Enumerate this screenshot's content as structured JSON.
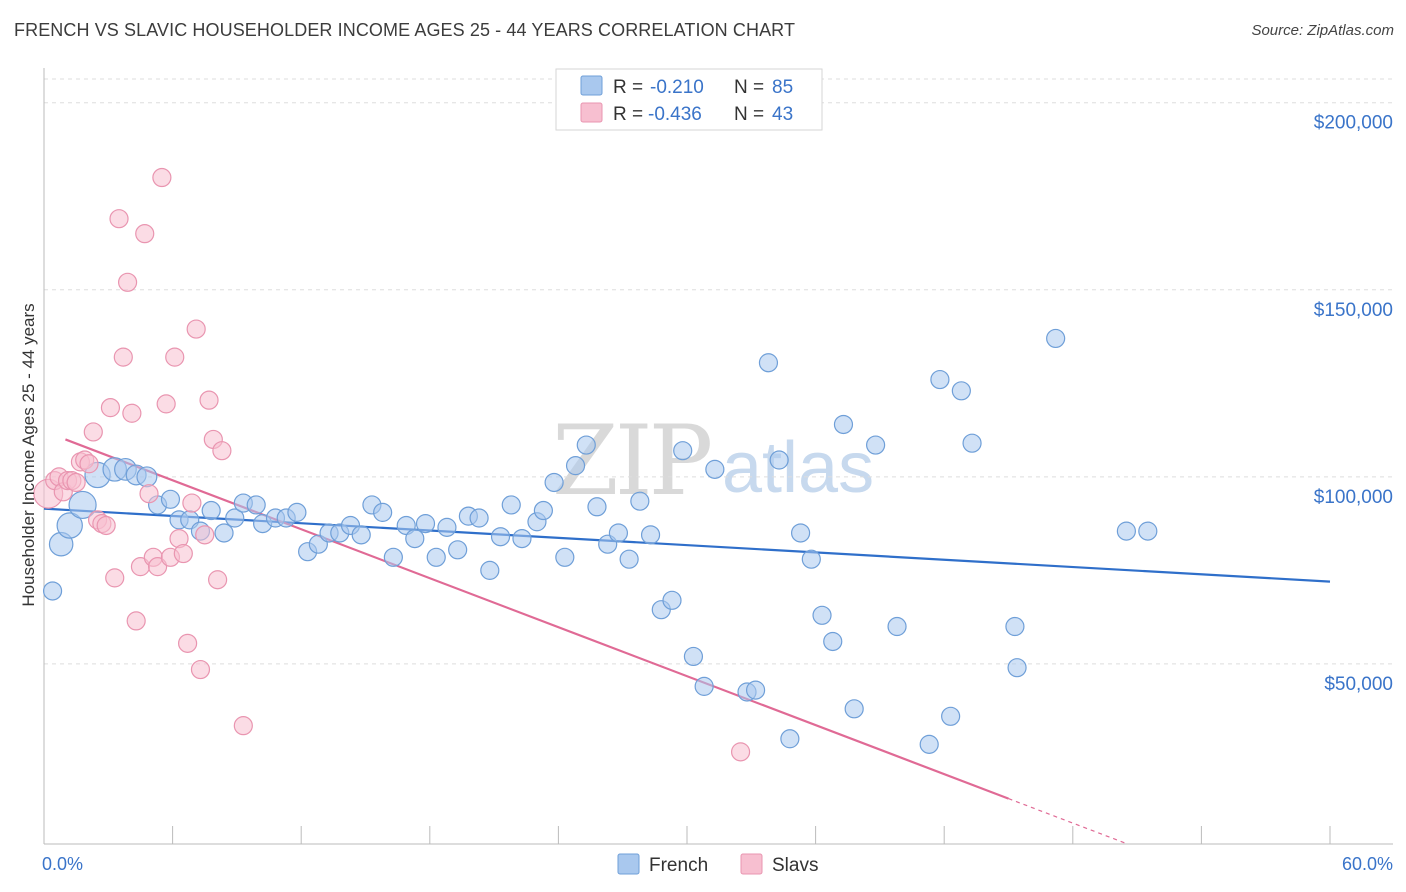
{
  "title": "FRENCH VS SLAVIC HOUSEHOLDER INCOME AGES 25 - 44 YEARS CORRELATION CHART",
  "source": "Source: ZipAtlas.com",
  "watermark": {
    "zip": "ZIP",
    "atlas": "atlas"
  },
  "legend": {
    "french": {
      "r_label": "R =",
      "r_value": "-0.210",
      "n_label": "N =",
      "n_value": "85"
    },
    "slavs": {
      "r_label": "R =",
      "r_value": "-0.436",
      "n_label": "N =",
      "n_value": "43"
    }
  },
  "bottom_legend": {
    "french": "French",
    "slavs": "Slavs"
  },
  "colors": {
    "french_fill": "#a9c8ee",
    "french_stroke": "#6f9fd8",
    "french_line": "#2f6fca",
    "slavs_fill": "#f7bfd0",
    "slavs_stroke": "#e995b0",
    "slavs_line": "#e06a95",
    "axis_text": "#3a74c9",
    "grid": "#dddddd"
  },
  "chart_data": {
    "type": "scatter",
    "title": "FRENCH VS SLAVIC HOUSEHOLDER INCOME AGES 25 - 44 YEARS CORRELATION CHART",
    "xlabel": "",
    "ylabel": "Householder Income Ages 25 - 44 years",
    "xlim": [
      0,
      60
    ],
    "ylim": [
      0,
      205000
    ],
    "x_tick_labels": {
      "left": "0.0%",
      "right": "60.0%"
    },
    "y_ticks": [
      {
        "value": 50000,
        "label": "$50,000"
      },
      {
        "value": 100000,
        "label": "$100,000"
      },
      {
        "value": 150000,
        "label": "$150,000"
      },
      {
        "value": 200000,
        "label": "$200,000"
      }
    ],
    "series": [
      {
        "name": "French",
        "trend": {
          "x0": 0,
          "y0": 91500,
          "x1": 60,
          "y1": 72000
        },
        "points": [
          [
            0.4,
            69500,
            1
          ],
          [
            0.8,
            82000,
            1.3
          ],
          [
            1.2,
            87000,
            1.4
          ],
          [
            1.8,
            92500,
            1.5
          ],
          [
            2.5,
            100500,
            1.4
          ],
          [
            3.3,
            102000,
            1.3
          ],
          [
            3.8,
            102000,
            1.2
          ],
          [
            4.3,
            100500,
            1.1
          ],
          [
            4.8,
            100000,
            1.1
          ],
          [
            5.3,
            92500,
            1
          ],
          [
            5.9,
            94000,
            1
          ],
          [
            6.3,
            88500,
            1
          ],
          [
            6.8,
            88500,
            1
          ],
          [
            7.3,
            85500,
            1
          ],
          [
            7.8,
            91000,
            1
          ],
          [
            8.4,
            85000,
            1
          ],
          [
            8.9,
            89000,
            1
          ],
          [
            9.3,
            93000,
            1
          ],
          [
            9.9,
            92500,
            1
          ],
          [
            10.2,
            87500,
            1
          ],
          [
            10.8,
            89000,
            1
          ],
          [
            11.3,
            89000,
            1
          ],
          [
            11.8,
            90500,
            1
          ],
          [
            12.3,
            80000,
            1
          ],
          [
            12.8,
            82000,
            1
          ],
          [
            13.3,
            85000,
            1
          ],
          [
            13.8,
            85000,
            1
          ],
          [
            14.3,
            87000,
            1
          ],
          [
            14.8,
            84500,
            1
          ],
          [
            15.3,
            92500,
            1
          ],
          [
            15.8,
            90500,
            1
          ],
          [
            16.3,
            78500,
            1
          ],
          [
            16.9,
            87000,
            1
          ],
          [
            17.3,
            83500,
            1
          ],
          [
            17.8,
            87500,
            1
          ],
          [
            18.3,
            78500,
            1
          ],
          [
            18.8,
            86500,
            1
          ],
          [
            19.3,
            80500,
            1
          ],
          [
            19.8,
            89500,
            1
          ],
          [
            20.3,
            89000,
            1
          ],
          [
            20.8,
            75000,
            1
          ],
          [
            21.3,
            84000,
            1
          ],
          [
            21.8,
            92500,
            1
          ],
          [
            22.3,
            83500,
            1
          ],
          [
            23.0,
            88000,
            1
          ],
          [
            23.3,
            91000,
            1
          ],
          [
            23.8,
            98500,
            1
          ],
          [
            24.3,
            78500,
            1
          ],
          [
            24.8,
            103000,
            1
          ],
          [
            25.3,
            108500,
            1
          ],
          [
            25.8,
            92000,
            1
          ],
          [
            26.3,
            82000,
            1
          ],
          [
            26.8,
            85000,
            1
          ],
          [
            27.3,
            78000,
            1
          ],
          [
            27.8,
            93500,
            1
          ],
          [
            28.3,
            84500,
            1
          ],
          [
            28.8,
            64500,
            1
          ],
          [
            29.3,
            67000,
            1
          ],
          [
            29.8,
            107000,
            1
          ],
          [
            30.3,
            52000,
            1
          ],
          [
            30.8,
            44000,
            1
          ],
          [
            31.3,
            102000,
            1
          ],
          [
            32.8,
            42500,
            1
          ],
          [
            33.2,
            43000,
            1
          ],
          [
            33.8,
            130500,
            1
          ],
          [
            34.3,
            104500,
            1
          ],
          [
            34.8,
            30000,
            1
          ],
          [
            35.3,
            85000,
            1
          ],
          [
            35.8,
            78000,
            1
          ],
          [
            36.3,
            63000,
            1
          ],
          [
            36.8,
            56000,
            1
          ],
          [
            37.3,
            114000,
            1
          ],
          [
            37.8,
            38000,
            1
          ],
          [
            38.8,
            108500,
            1
          ],
          [
            39.8,
            60000,
            1
          ],
          [
            41.3,
            28500,
            1
          ],
          [
            41.8,
            126000,
            1
          ],
          [
            42.3,
            36000,
            1
          ],
          [
            42.8,
            123000,
            1
          ],
          [
            43.3,
            109000,
            1
          ],
          [
            45.3,
            60000,
            1
          ],
          [
            45.4,
            49000,
            1
          ],
          [
            47.2,
            137000,
            1
          ],
          [
            50.5,
            85500,
            1
          ],
          [
            51.5,
            85500,
            1
          ]
        ]
      },
      {
        "name": "Slavs",
        "trend": {
          "x0": 1.0,
          "y0": 110000,
          "x1": 45.0,
          "y1": 14000
        },
        "points": [
          [
            0.2,
            95500,
            1.6
          ],
          [
            0.5,
            99000,
            1
          ],
          [
            0.7,
            100000,
            1
          ],
          [
            0.9,
            96000,
            1
          ],
          [
            1.1,
            99000,
            1
          ],
          [
            1.3,
            99000,
            1
          ],
          [
            1.5,
            98500,
            1
          ],
          [
            1.7,
            104000,
            1
          ],
          [
            1.9,
            104500,
            1
          ],
          [
            2.1,
            103500,
            1
          ],
          [
            2.3,
            112000,
            1
          ],
          [
            2.5,
            88500,
            1
          ],
          [
            2.7,
            87500,
            1
          ],
          [
            2.9,
            87000,
            1
          ],
          [
            3.1,
            118500,
            1
          ],
          [
            3.3,
            73000,
            1
          ],
          [
            3.5,
            169000,
            1
          ],
          [
            3.7,
            132000,
            1
          ],
          [
            3.9,
            152000,
            1
          ],
          [
            4.1,
            117000,
            1
          ],
          [
            4.3,
            61500,
            1
          ],
          [
            4.5,
            76000,
            1
          ],
          [
            4.7,
            165000,
            1
          ],
          [
            4.9,
            95500,
            1
          ],
          [
            5.1,
            78500,
            1
          ],
          [
            5.3,
            76000,
            1
          ],
          [
            5.5,
            180000,
            1
          ],
          [
            5.7,
            119500,
            1
          ],
          [
            5.9,
            78500,
            1
          ],
          [
            6.1,
            132000,
            1
          ],
          [
            6.3,
            83500,
            1
          ],
          [
            6.5,
            79500,
            1
          ],
          [
            6.7,
            55500,
            1
          ],
          [
            6.9,
            93000,
            1
          ],
          [
            7.1,
            139500,
            1
          ],
          [
            7.3,
            48500,
            1
          ],
          [
            7.5,
            84500,
            1
          ],
          [
            7.7,
            120500,
            1
          ],
          [
            7.9,
            110000,
            1
          ],
          [
            8.1,
            72500,
            1
          ],
          [
            8.3,
            107000,
            1
          ],
          [
            9.3,
            33500,
            1
          ],
          [
            32.5,
            26500,
            1
          ]
        ]
      }
    ]
  }
}
